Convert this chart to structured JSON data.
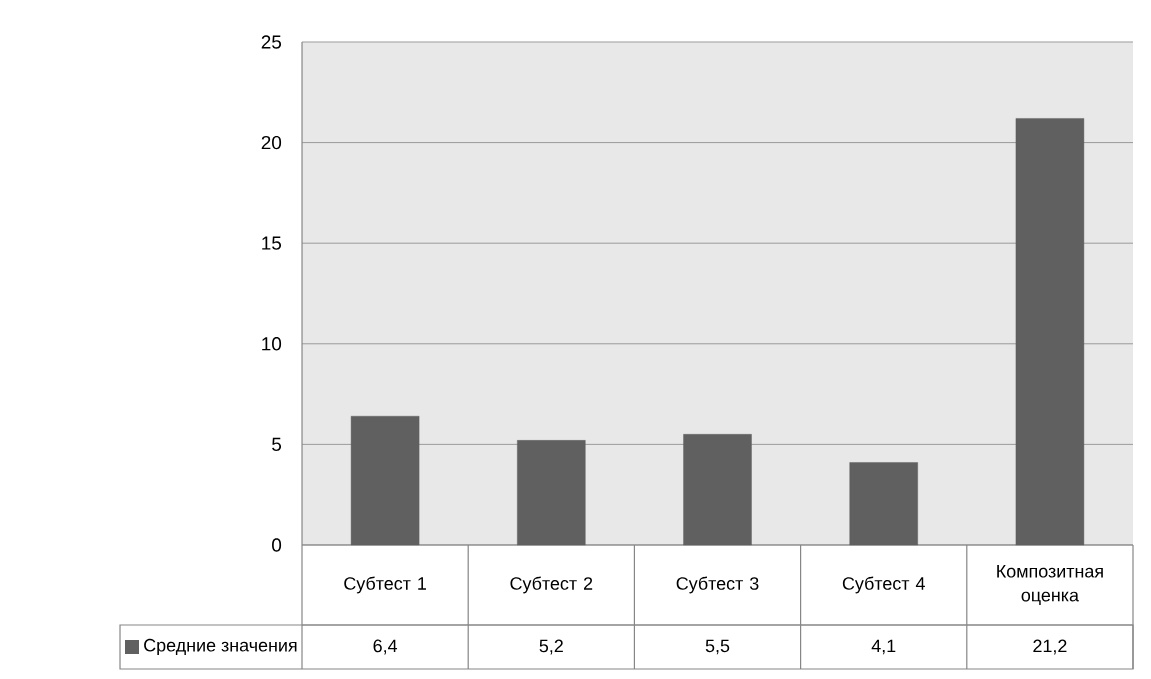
{
  "chart_data": {
    "type": "bar",
    "categories": [
      "Субтест 1",
      "Субтест 2",
      "Субтест 3",
      "Субтест 4",
      "Композитная оценка"
    ],
    "series": [
      {
        "name": "Средние значения",
        "color": "#606060",
        "values": [
          6.4,
          5.2,
          5.5,
          4.1,
          21.2
        ],
        "value_labels": [
          "6,4",
          "5,2",
          "5,5",
          "4,1",
          "21,2"
        ]
      }
    ],
    "ylim": [
      0,
      25
    ],
    "yticks": [
      0,
      5,
      10,
      15,
      20,
      25
    ],
    "grid": "y",
    "legend": "bottom"
  }
}
